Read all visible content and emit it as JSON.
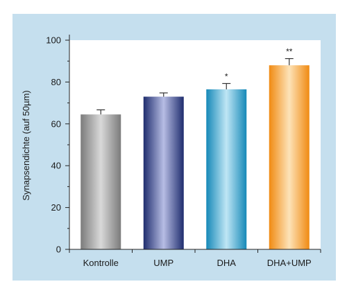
{
  "colors": {
    "background_panel": "#c5dfee",
    "plot_area": "#ffffff",
    "axis": "#222222"
  },
  "chart_data": {
    "type": "bar",
    "title": "",
    "xlabel": "",
    "ylabel": "Synapsendichte (auf 50µm)",
    "ylim": [
      0,
      100
    ],
    "y_ticks": [
      0,
      20,
      40,
      60,
      80,
      100
    ],
    "y_minor_ticks": [
      10,
      30,
      50,
      70,
      90
    ],
    "grid": false,
    "categories": [
      "Kontrolle",
      "UMP",
      "DHA",
      "DHA+UMP"
    ],
    "values": [
      64.5,
      73,
      76.5,
      88
    ],
    "errors": [
      2.2,
      1.8,
      2.8,
      3.2
    ],
    "significance": [
      "",
      "",
      "*",
      "**"
    ],
    "bar_styles": [
      {
        "edge": "#7b7b7b",
        "center": "#d9d9d9"
      },
      {
        "edge": "#1f2d6e",
        "center": "#b7bde4"
      },
      {
        "edge": "#1689b8",
        "center": "#bfe6f5"
      },
      {
        "edge": "#f08a12",
        "center": "#fde3b8"
      }
    ]
  }
}
